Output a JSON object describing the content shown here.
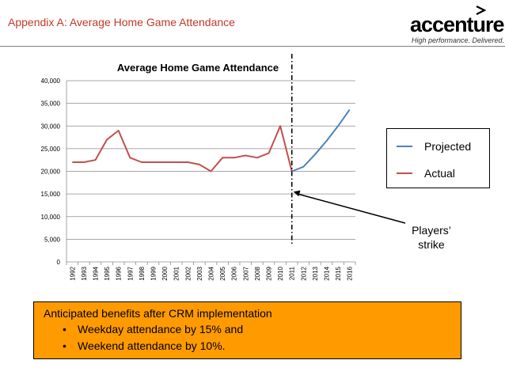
{
  "slide": {
    "title": "Appendix A: Average Home Game Attendance"
  },
  "logo": {
    "brand": "accenture",
    "tagline": "High performance. Delivered."
  },
  "colors": {
    "title": "#c0392b",
    "actual": "#c0504d",
    "projected": "#4f81bd",
    "callout_bg": "#ff9b00"
  },
  "chart_data": {
    "type": "line",
    "title": "Average Home Game Attendance",
    "xlabel": "",
    "ylabel": "",
    "ylim": [
      0,
      40000
    ],
    "yticks": [
      0,
      5000,
      10000,
      15000,
      20000,
      25000,
      30000,
      35000,
      40000
    ],
    "ytick_labels": [
      "0",
      "5,000",
      "10,000",
      "15,000",
      "20,000",
      "25,000",
      "30,000",
      "35,000",
      "40,000"
    ],
    "categories": [
      "1992",
      "1993",
      "1994",
      "1995",
      "1996",
      "1997",
      "1998",
      "1999",
      "2000",
      "2001",
      "2002",
      "2003",
      "2004",
      "2005",
      "2006",
      "2007",
      "2008",
      "2009",
      "2010",
      "2011",
      "2012",
      "2013",
      "2014",
      "2015",
      "2016"
    ],
    "series": [
      {
        "name": "Actual",
        "color": "#c0504d",
        "values": [
          22000,
          22000,
          22500,
          27000,
          29000,
          23000,
          22000,
          22000,
          22000,
          22000,
          22000,
          21500,
          20000,
          23000,
          23000,
          23500,
          23000,
          24000,
          30000,
          20000,
          null,
          null,
          null,
          null,
          null
        ]
      },
      {
        "name": "Projected",
        "color": "#4f81bd",
        "values": [
          null,
          null,
          null,
          null,
          null,
          null,
          null,
          null,
          null,
          null,
          null,
          null,
          null,
          null,
          null,
          null,
          null,
          null,
          null,
          20000,
          21000,
          23700,
          26700,
          30000,
          33600
        ]
      }
    ],
    "legend": [
      "Projected",
      "Actual"
    ],
    "legend_position": "right",
    "marker_line_year": "2011",
    "annotation": {
      "text_line1": "Players’",
      "text_line2": "strike",
      "target_year": "2011",
      "target_value": 15500
    }
  },
  "callout": {
    "heading": "Anticipated benefits after CRM implementation",
    "bullets": [
      "Weekday attendance by 15% and",
      "Weekend attendance by 10%."
    ]
  }
}
